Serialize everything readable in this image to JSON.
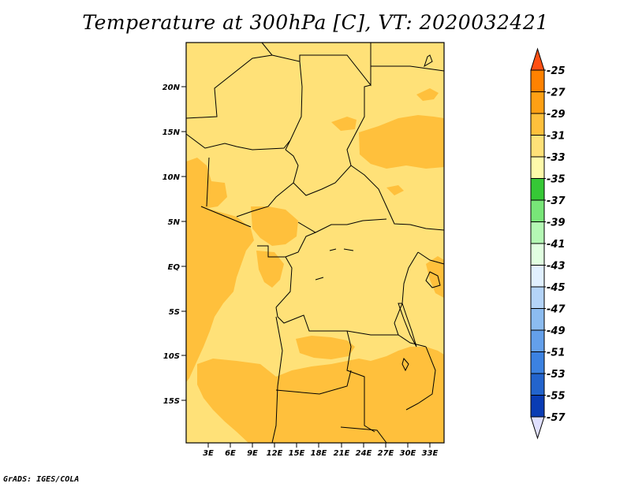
{
  "title": "Temperature at 300hPa [C], VT: 2020032421",
  "credit": "GrADS: IGES/COLA",
  "map": {
    "lat_ticks": [
      "20N",
      "15N",
      "10N",
      "5N",
      "EQ",
      "5S",
      "10S",
      "15S"
    ],
    "lon_ticks": [
      "3E",
      "6E",
      "9E",
      "12E",
      "15E",
      "18E",
      "21E",
      "24E",
      "27E",
      "30E",
      "33E"
    ]
  },
  "colorbar": {
    "labels": [
      "-25",
      "-27",
      "-29",
      "-31",
      "-33",
      "-35",
      "-37",
      "-39",
      "-41",
      "-43",
      "-45",
      "-47",
      "-49",
      "-51",
      "-53",
      "-55",
      "-57"
    ],
    "colors": [
      "#ff5014",
      "#ff8200",
      "#ffa014",
      "#ffc03c",
      "#ffe178",
      "#fffaaa",
      "#36c836",
      "#78e678",
      "#b4f8b4",
      "#e1ffe1",
      "#e1f0ff",
      "#b4d4f8",
      "#8cbcf0",
      "#64a0eb",
      "#3c82e1",
      "#2364cd",
      "#0a3cb4",
      "#001e78",
      "#e0e0ff"
    ]
  }
}
